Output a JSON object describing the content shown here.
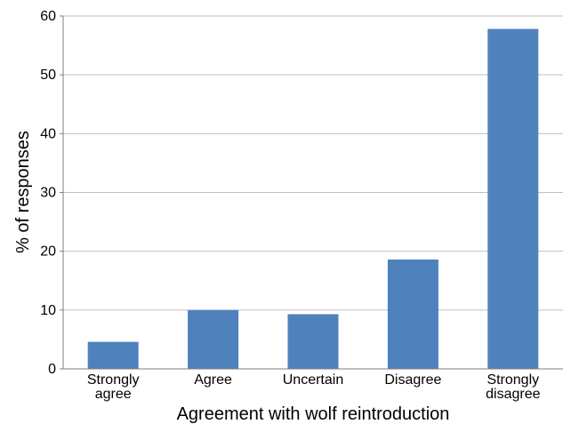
{
  "chart_data": {
    "type": "bar",
    "title": "",
    "xlabel": "Agreement with wolf reintroduction",
    "ylabel": "% of responses",
    "categories": [
      [
        "Strongly",
        "agree"
      ],
      [
        "Agree"
      ],
      [
        "Uncertain"
      ],
      [
        "Disagree"
      ],
      [
        "Strongly",
        "disagree"
      ]
    ],
    "values": [
      4.6,
      10.0,
      9.3,
      18.6,
      57.8
    ],
    "ylim": [
      0,
      60
    ],
    "yticks": [
      0,
      10,
      20,
      30,
      40,
      50,
      60
    ],
    "grid": true,
    "legend": "none",
    "colors": {
      "bar": "#4f81bd",
      "grid": "#bfbfbf",
      "axis": "#7f7f7f",
      "text": "#000000"
    }
  }
}
